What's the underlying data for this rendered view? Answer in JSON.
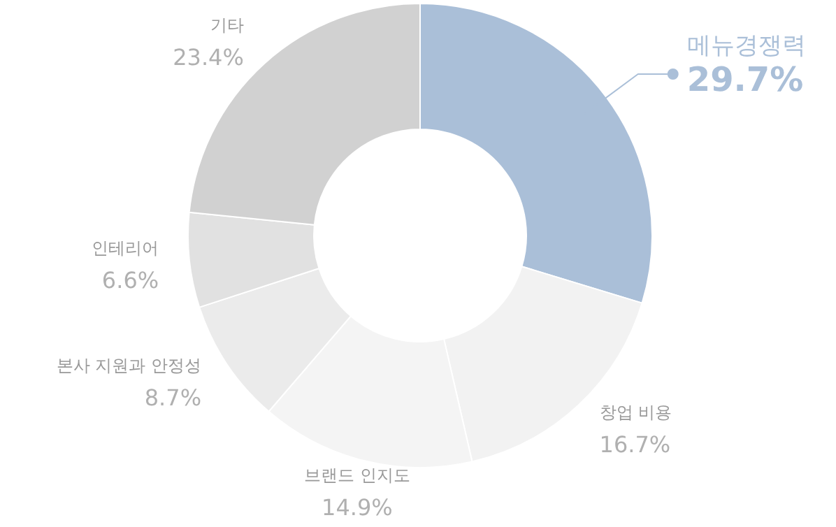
{
  "chart_data": {
    "type": "donut",
    "categories": [
      "메뉴경쟁력",
      "창업 비용",
      "브랜드 인지도",
      "본사 지원과 안정성",
      "인테리어",
      "기타"
    ],
    "values": [
      29.7,
      16.7,
      14.9,
      8.7,
      6.6,
      23.4
    ],
    "value_labels": [
      "29.7%",
      "16.7%",
      "14.9%",
      "8.7%",
      "6.6%",
      "23.4%"
    ],
    "colors": [
      "#aabfd8",
      "#f2f2f2",
      "#f4f4f4",
      "#ebebeb",
      "#e1e1e1",
      "#d1d1d1"
    ]
  }
}
